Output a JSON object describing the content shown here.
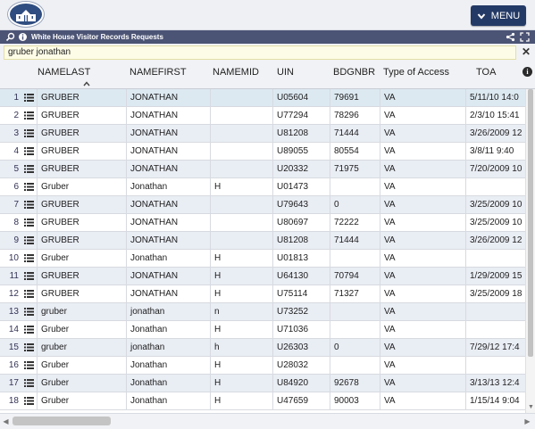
{
  "header": {
    "menu_label": "MENU"
  },
  "panel": {
    "title": "White House Visitor Records Requests"
  },
  "search": {
    "value": "gruber jonathan"
  },
  "columns": [
    "NAMELAST",
    "NAMEFIRST",
    "NAMEMID",
    "UIN",
    "BDGNBR",
    "Type of Access",
    "TOA"
  ],
  "rows": [
    {
      "num": "1",
      "last": "GRUBER",
      "first": "JONATHAN",
      "mid": "",
      "uin": "U05604",
      "bdg": "79691",
      "type": "VA",
      "toa": "5/11/10 14:0"
    },
    {
      "num": "2",
      "last": "GRUBER",
      "first": "JONATHAN",
      "mid": "",
      "uin": "U77294",
      "bdg": "78296",
      "type": "VA",
      "toa": "2/3/10 15:41"
    },
    {
      "num": "3",
      "last": "GRUBER",
      "first": "JONATHAN",
      "mid": "",
      "uin": "U81208",
      "bdg": "71444",
      "type": "VA",
      "toa": "3/26/2009 12"
    },
    {
      "num": "4",
      "last": "GRUBER",
      "first": "JONATHAN",
      "mid": "",
      "uin": "U89055",
      "bdg": "80554",
      "type": "VA",
      "toa": "3/8/11 9:40"
    },
    {
      "num": "5",
      "last": "GRUBER",
      "first": "JONATHAN",
      "mid": "",
      "uin": "U20332",
      "bdg": "71975",
      "type": "VA",
      "toa": "7/20/2009 10"
    },
    {
      "num": "6",
      "last": "Gruber",
      "first": "Jonathan",
      "mid": "H",
      "uin": "U01473",
      "bdg": "",
      "type": "VA",
      "toa": ""
    },
    {
      "num": "7",
      "last": "GRUBER",
      "first": "JONATHAN",
      "mid": "",
      "uin": "U79643",
      "bdg": "0",
      "type": "VA",
      "toa": "3/25/2009 10"
    },
    {
      "num": "8",
      "last": "GRUBER",
      "first": "JONATHAN",
      "mid": "",
      "uin": "U80697",
      "bdg": "72222",
      "type": "VA",
      "toa": "3/25/2009 10"
    },
    {
      "num": "9",
      "last": "GRUBER",
      "first": "JONATHAN",
      "mid": "",
      "uin": "U81208",
      "bdg": "71444",
      "type": "VA",
      "toa": "3/26/2009 12"
    },
    {
      "num": "10",
      "last": "Gruber",
      "first": "Jonathan",
      "mid": "H",
      "uin": "U01813",
      "bdg": "",
      "type": "VA",
      "toa": ""
    },
    {
      "num": "11",
      "last": "GRUBER",
      "first": "JONATHAN",
      "mid": "H",
      "uin": "U64130",
      "bdg": "70794",
      "type": "VA",
      "toa": "1/29/2009 15"
    },
    {
      "num": "12",
      "last": "GRUBER",
      "first": "JONATHAN",
      "mid": "H",
      "uin": "U75114",
      "bdg": "71327",
      "type": "VA",
      "toa": "3/25/2009 18"
    },
    {
      "num": "13",
      "last": "gruber",
      "first": "jonathan",
      "mid": "n",
      "uin": "U73252",
      "bdg": "",
      "type": "VA",
      "toa": ""
    },
    {
      "num": "14",
      "last": "Gruber",
      "first": "Jonathan",
      "mid": "H",
      "uin": "U71036",
      "bdg": "",
      "type": "VA",
      "toa": ""
    },
    {
      "num": "15",
      "last": "gruber",
      "first": "jonathan",
      "mid": "h",
      "uin": "U26303",
      "bdg": "0",
      "type": "VA",
      "toa": "7/29/12 17:4"
    },
    {
      "num": "16",
      "last": "Gruber",
      "first": "Jonathan",
      "mid": "H",
      "uin": "U28032",
      "bdg": "",
      "type": "VA",
      "toa": ""
    },
    {
      "num": "17",
      "last": "Gruber",
      "first": "Jonathan",
      "mid": "H",
      "uin": "U84920",
      "bdg": "92678",
      "type": "VA",
      "toa": "3/13/13 12:4"
    },
    {
      "num": "18",
      "last": "Gruber",
      "first": "Jonathan",
      "mid": "H",
      "uin": "U47659",
      "bdg": "90003",
      "type": "VA",
      "toa": "1/15/14 9:04"
    }
  ],
  "colors": {
    "menu_bg": "#243a66",
    "title_bg": "#4c5475",
    "row_alt": "#e9edf4",
    "row_selected": "#dde9f1"
  }
}
